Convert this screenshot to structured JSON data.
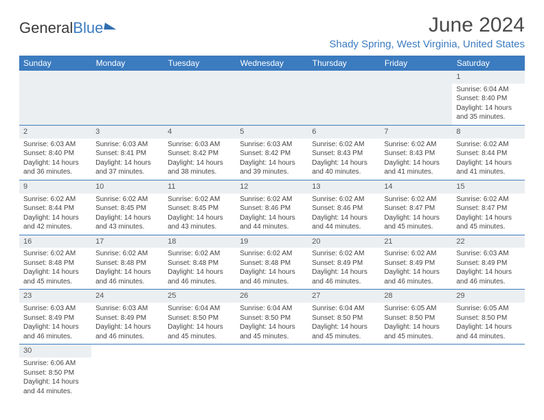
{
  "brand": {
    "part1": "General",
    "part2": "Blue"
  },
  "title": "June 2024",
  "location": "Shady Spring, West Virginia, United States",
  "colors": {
    "header_bg": "#3b7bbf",
    "header_text": "#ffffff",
    "daynum_bg": "#eceff1",
    "text": "#444444",
    "border": "#3b7bbf"
  },
  "typography": {
    "title_fontsize": 30,
    "location_fontsize": 15,
    "weekday_fontsize": 12,
    "daynum_fontsize": 11,
    "cell_fontsize": 10
  },
  "weekdays": [
    "Sunday",
    "Monday",
    "Tuesday",
    "Wednesday",
    "Thursday",
    "Friday",
    "Saturday"
  ],
  "weeks": [
    [
      null,
      null,
      null,
      null,
      null,
      null,
      {
        "n": "1",
        "sr": "Sunrise: 6:04 AM",
        "ss": "Sunset: 8:40 PM",
        "d1": "Daylight: 14 hours",
        "d2": "and 35 minutes."
      }
    ],
    [
      {
        "n": "2",
        "sr": "Sunrise: 6:03 AM",
        "ss": "Sunset: 8:40 PM",
        "d1": "Daylight: 14 hours",
        "d2": "and 36 minutes."
      },
      {
        "n": "3",
        "sr": "Sunrise: 6:03 AM",
        "ss": "Sunset: 8:41 PM",
        "d1": "Daylight: 14 hours",
        "d2": "and 37 minutes."
      },
      {
        "n": "4",
        "sr": "Sunrise: 6:03 AM",
        "ss": "Sunset: 8:42 PM",
        "d1": "Daylight: 14 hours",
        "d2": "and 38 minutes."
      },
      {
        "n": "5",
        "sr": "Sunrise: 6:03 AM",
        "ss": "Sunset: 8:42 PM",
        "d1": "Daylight: 14 hours",
        "d2": "and 39 minutes."
      },
      {
        "n": "6",
        "sr": "Sunrise: 6:02 AM",
        "ss": "Sunset: 8:43 PM",
        "d1": "Daylight: 14 hours",
        "d2": "and 40 minutes."
      },
      {
        "n": "7",
        "sr": "Sunrise: 6:02 AM",
        "ss": "Sunset: 8:43 PM",
        "d1": "Daylight: 14 hours",
        "d2": "and 41 minutes."
      },
      {
        "n": "8",
        "sr": "Sunrise: 6:02 AM",
        "ss": "Sunset: 8:44 PM",
        "d1": "Daylight: 14 hours",
        "d2": "and 41 minutes."
      }
    ],
    [
      {
        "n": "9",
        "sr": "Sunrise: 6:02 AM",
        "ss": "Sunset: 8:44 PM",
        "d1": "Daylight: 14 hours",
        "d2": "and 42 minutes."
      },
      {
        "n": "10",
        "sr": "Sunrise: 6:02 AM",
        "ss": "Sunset: 8:45 PM",
        "d1": "Daylight: 14 hours",
        "d2": "and 43 minutes."
      },
      {
        "n": "11",
        "sr": "Sunrise: 6:02 AM",
        "ss": "Sunset: 8:45 PM",
        "d1": "Daylight: 14 hours",
        "d2": "and 43 minutes."
      },
      {
        "n": "12",
        "sr": "Sunrise: 6:02 AM",
        "ss": "Sunset: 8:46 PM",
        "d1": "Daylight: 14 hours",
        "d2": "and 44 minutes."
      },
      {
        "n": "13",
        "sr": "Sunrise: 6:02 AM",
        "ss": "Sunset: 8:46 PM",
        "d1": "Daylight: 14 hours",
        "d2": "and 44 minutes."
      },
      {
        "n": "14",
        "sr": "Sunrise: 6:02 AM",
        "ss": "Sunset: 8:47 PM",
        "d1": "Daylight: 14 hours",
        "d2": "and 45 minutes."
      },
      {
        "n": "15",
        "sr": "Sunrise: 6:02 AM",
        "ss": "Sunset: 8:47 PM",
        "d1": "Daylight: 14 hours",
        "d2": "and 45 minutes."
      }
    ],
    [
      {
        "n": "16",
        "sr": "Sunrise: 6:02 AM",
        "ss": "Sunset: 8:48 PM",
        "d1": "Daylight: 14 hours",
        "d2": "and 45 minutes."
      },
      {
        "n": "17",
        "sr": "Sunrise: 6:02 AM",
        "ss": "Sunset: 8:48 PM",
        "d1": "Daylight: 14 hours",
        "d2": "and 46 minutes."
      },
      {
        "n": "18",
        "sr": "Sunrise: 6:02 AM",
        "ss": "Sunset: 8:48 PM",
        "d1": "Daylight: 14 hours",
        "d2": "and 46 minutes."
      },
      {
        "n": "19",
        "sr": "Sunrise: 6:02 AM",
        "ss": "Sunset: 8:48 PM",
        "d1": "Daylight: 14 hours",
        "d2": "and 46 minutes."
      },
      {
        "n": "20",
        "sr": "Sunrise: 6:02 AM",
        "ss": "Sunset: 8:49 PM",
        "d1": "Daylight: 14 hours",
        "d2": "and 46 minutes."
      },
      {
        "n": "21",
        "sr": "Sunrise: 6:02 AM",
        "ss": "Sunset: 8:49 PM",
        "d1": "Daylight: 14 hours",
        "d2": "and 46 minutes."
      },
      {
        "n": "22",
        "sr": "Sunrise: 6:03 AM",
        "ss": "Sunset: 8:49 PM",
        "d1": "Daylight: 14 hours",
        "d2": "and 46 minutes."
      }
    ],
    [
      {
        "n": "23",
        "sr": "Sunrise: 6:03 AM",
        "ss": "Sunset: 8:49 PM",
        "d1": "Daylight: 14 hours",
        "d2": "and 46 minutes."
      },
      {
        "n": "24",
        "sr": "Sunrise: 6:03 AM",
        "ss": "Sunset: 8:49 PM",
        "d1": "Daylight: 14 hours",
        "d2": "and 46 minutes."
      },
      {
        "n": "25",
        "sr": "Sunrise: 6:04 AM",
        "ss": "Sunset: 8:50 PM",
        "d1": "Daylight: 14 hours",
        "d2": "and 45 minutes."
      },
      {
        "n": "26",
        "sr": "Sunrise: 6:04 AM",
        "ss": "Sunset: 8:50 PM",
        "d1": "Daylight: 14 hours",
        "d2": "and 45 minutes."
      },
      {
        "n": "27",
        "sr": "Sunrise: 6:04 AM",
        "ss": "Sunset: 8:50 PM",
        "d1": "Daylight: 14 hours",
        "d2": "and 45 minutes."
      },
      {
        "n": "28",
        "sr": "Sunrise: 6:05 AM",
        "ss": "Sunset: 8:50 PM",
        "d1": "Daylight: 14 hours",
        "d2": "and 45 minutes."
      },
      {
        "n": "29",
        "sr": "Sunrise: 6:05 AM",
        "ss": "Sunset: 8:50 PM",
        "d1": "Daylight: 14 hours",
        "d2": "and 44 minutes."
      }
    ],
    [
      {
        "n": "30",
        "sr": "Sunrise: 6:06 AM",
        "ss": "Sunset: 8:50 PM",
        "d1": "Daylight: 14 hours",
        "d2": "and 44 minutes."
      },
      null,
      null,
      null,
      null,
      null,
      null
    ]
  ]
}
